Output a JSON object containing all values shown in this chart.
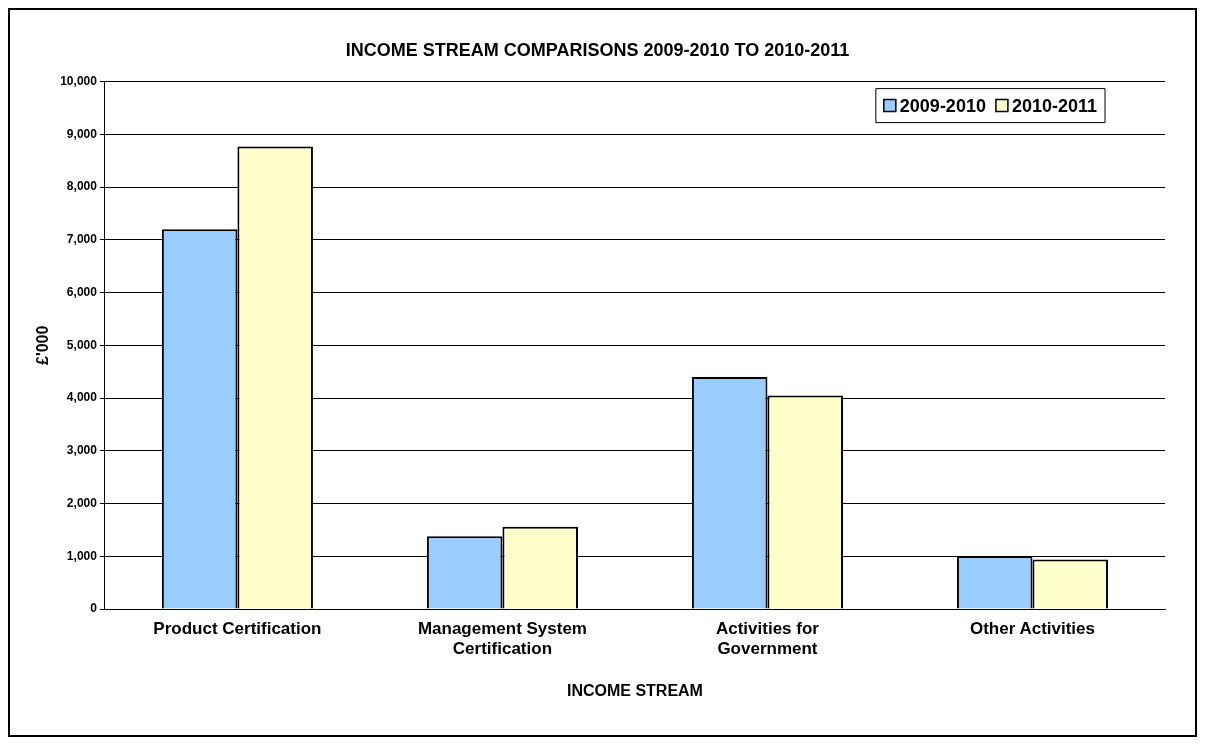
{
  "chart_data": {
    "type": "bar",
    "title": "INCOME STREAM COMPARISONS 2009-2010 TO 2010-2011",
    "xlabel": "INCOME STREAM",
    "ylabel": "£'000",
    "categories": [
      "Product Certification",
      "Management System Certification",
      "Activities for Government",
      "Other Activities"
    ],
    "series": [
      {
        "name": "2009-2010",
        "color": "#99ccff",
        "values": [
          7200,
          1380,
          4400,
          1000
        ]
      },
      {
        "name": "2010-2011",
        "color": "#ffffcc",
        "values": [
          8770,
          1560,
          4050,
          940
        ]
      }
    ],
    "ylim": [
      0,
      10000
    ],
    "yticks": [
      {
        "value": 0,
        "label": "0"
      },
      {
        "value": 1000,
        "label": "1,000"
      },
      {
        "value": 2000,
        "label": "2,000"
      },
      {
        "value": 3000,
        "label": "3,000"
      },
      {
        "value": 4000,
        "label": "4,000"
      },
      {
        "value": 5000,
        "label": "5,000"
      },
      {
        "value": 6000,
        "label": "6,000"
      },
      {
        "value": 7000,
        "label": "7,000"
      },
      {
        "value": 8000,
        "label": "8,000"
      },
      {
        "value": 9000,
        "label": "9,000"
      },
      {
        "value": 10000,
        "label": "10,000"
      }
    ],
    "grid": "y",
    "legend": "top right"
  }
}
